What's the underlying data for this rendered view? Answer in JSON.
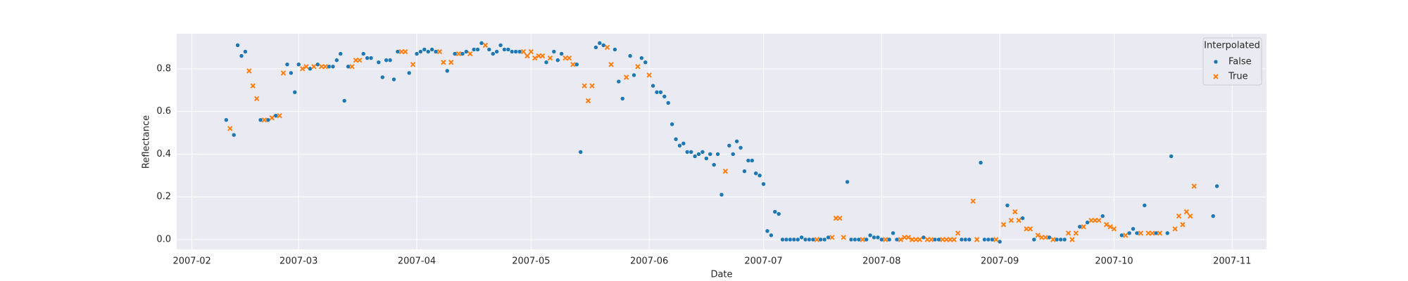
{
  "chart_data": {
    "type": "scatter",
    "x_label": "Date",
    "y_label": "Reflectance",
    "legend_title": "Interpolated",
    "legend": "upper right",
    "grid": true,
    "xlim": [
      "2007-01-28",
      "2007-11-10"
    ],
    "xticks": [
      {
        "value": "2007-02-01",
        "label": "2007-02"
      },
      {
        "value": "2007-03-01",
        "label": "2007-03"
      },
      {
        "value": "2007-04-01",
        "label": "2007-04"
      },
      {
        "value": "2007-05-01",
        "label": "2007-05"
      },
      {
        "value": "2007-06-01",
        "label": "2007-06"
      },
      {
        "value": "2007-07-01",
        "label": "2007-07"
      },
      {
        "value": "2007-08-01",
        "label": "2007-08"
      },
      {
        "value": "2007-09-01",
        "label": "2007-09"
      },
      {
        "value": "2007-10-01",
        "label": "2007-10"
      },
      {
        "value": "2007-11-01",
        "label": "2007-11"
      }
    ],
    "ylim": [
      -0.046,
      0.964
    ],
    "yticks": [
      {
        "value": 0,
        "label": "0.0"
      },
      0.2,
      0.4,
      0.6,
      0.8
    ],
    "series": [
      {
        "name": "False",
        "color": "#1f77b4",
        "marker": "circle",
        "x": [
          "2007-02-10",
          "2007-02-12",
          "2007-02-13",
          "2007-02-14",
          "2007-02-15",
          "2007-02-19",
          "2007-02-21",
          "2007-02-23",
          "2007-02-26",
          "2007-02-27",
          "2007-02-28",
          "2007-03-01",
          "2007-03-04",
          "2007-03-06",
          "2007-03-09",
          "2007-03-10",
          "2007-03-11",
          "2007-03-12",
          "2007-03-13",
          "2007-03-14",
          "2007-03-18",
          "2007-03-19",
          "2007-03-20",
          "2007-03-22",
          "2007-03-23",
          "2007-03-24",
          "2007-03-25",
          "2007-03-26",
          "2007-03-27",
          "2007-03-30",
          "2007-04-01",
          "2007-04-02",
          "2007-04-03",
          "2007-04-04",
          "2007-04-05",
          "2007-04-06",
          "2007-04-09",
          "2007-04-11",
          "2007-04-13",
          "2007-04-14",
          "2007-04-16",
          "2007-04-17",
          "2007-04-18",
          "2007-04-20",
          "2007-04-21",
          "2007-04-22",
          "2007-04-23",
          "2007-04-24",
          "2007-04-25",
          "2007-04-26",
          "2007-04-27",
          "2007-04-28",
          "2007-05-05",
          "2007-05-07",
          "2007-05-08",
          "2007-05-09",
          "2007-05-13",
          "2007-05-14",
          "2007-05-18",
          "2007-05-19",
          "2007-05-20",
          "2007-05-23",
          "2007-05-24",
          "2007-05-25",
          "2007-05-27",
          "2007-05-28",
          "2007-05-30",
          "2007-05-31",
          "2007-06-02",
          "2007-06-03",
          "2007-06-04",
          "2007-06-05",
          "2007-06-06",
          "2007-06-07",
          "2007-06-08",
          "2007-06-09",
          "2007-06-10",
          "2007-06-11",
          "2007-06-12",
          "2007-06-13",
          "2007-06-14",
          "2007-06-15",
          "2007-06-16",
          "2007-06-17",
          "2007-06-18",
          "2007-06-19",
          "2007-06-20",
          "2007-06-22",
          "2007-06-23",
          "2007-06-24",
          "2007-06-25",
          "2007-06-26",
          "2007-06-27",
          "2007-06-28",
          "2007-06-29",
          "2007-06-30",
          "2007-07-01",
          "2007-07-02",
          "2007-07-03",
          "2007-07-04",
          "2007-07-05",
          "2007-07-06",
          "2007-07-07",
          "2007-07-08",
          "2007-07-09",
          "2007-07-10",
          "2007-07-11",
          "2007-07-12",
          "2007-07-13",
          "2007-07-14",
          "2007-07-16",
          "2007-07-17",
          "2007-07-18",
          "2007-07-23",
          "2007-07-24",
          "2007-07-25",
          "2007-07-26",
          "2007-07-28",
          "2007-07-29",
          "2007-07-30",
          "2007-07-31",
          "2007-08-01",
          "2007-08-03",
          "2007-08-04",
          "2007-08-05",
          "2007-08-12",
          "2007-08-15",
          "2007-08-16",
          "2007-08-22",
          "2007-08-23",
          "2007-08-24",
          "2007-08-27",
          "2007-08-28",
          "2007-08-29",
          "2007-08-30",
          "2007-09-01",
          "2007-09-03",
          "2007-09-07",
          "2007-09-10",
          "2007-09-14",
          "2007-09-16",
          "2007-09-17",
          "2007-09-18",
          "2007-09-22",
          "2007-09-24",
          "2007-09-28",
          "2007-10-03",
          "2007-10-05",
          "2007-10-06",
          "2007-10-07",
          "2007-10-09",
          "2007-10-12",
          "2007-10-15",
          "2007-10-16",
          "2007-10-27",
          "2007-10-28"
        ],
        "values": [
          0.56,
          0.49,
          0.91,
          0.86,
          0.88,
          0.56,
          0.56,
          0.58,
          0.82,
          0.78,
          0.69,
          0.82,
          0.8,
          0.82,
          0.81,
          0.81,
          0.84,
          0.87,
          0.65,
          0.81,
          0.87,
          0.85,
          0.85,
          0.83,
          0.76,
          0.84,
          0.84,
          0.75,
          0.88,
          0.78,
          0.87,
          0.88,
          0.89,
          0.88,
          0.89,
          0.88,
          0.79,
          0.87,
          0.87,
          0.88,
          0.89,
          0.89,
          0.92,
          0.89,
          0.87,
          0.88,
          0.91,
          0.89,
          0.89,
          0.88,
          0.88,
          0.88,
          0.83,
          0.88,
          0.84,
          0.87,
          0.82,
          0.41,
          0.9,
          0.92,
          0.91,
          0.89,
          0.74,
          0.66,
          0.86,
          0.77,
          0.85,
          0.83,
          0.72,
          0.69,
          0.69,
          0.67,
          0.64,
          0.54,
          0.47,
          0.44,
          0.45,
          0.41,
          0.41,
          0.39,
          0.4,
          0.41,
          0.38,
          0.4,
          0.35,
          0.4,
          0.21,
          0.44,
          0.4,
          0.46,
          0.43,
          0.32,
          0.37,
          0.37,
          0.31,
          0.3,
          0.26,
          0.04,
          0.02,
          0.13,
          0.12,
          0,
          0,
          0,
          0,
          0,
          0.01,
          0,
          0,
          0,
          0,
          0,
          0.01,
          0.27,
          0,
          0,
          0,
          0,
          0.02,
          0.01,
          0.01,
          0,
          0,
          0.03,
          0,
          0.01,
          0,
          0,
          0,
          0,
          0,
          0.36,
          0,
          0,
          0,
          -0.01,
          0.16,
          0.1,
          0,
          0.01,
          0,
          0,
          0,
          0.06,
          0.08,
          0.11,
          0.02,
          0.03,
          0.05,
          0.03,
          0.16,
          0.03,
          0.03,
          0.39,
          0.11,
          0.25
        ]
      },
      {
        "name": "True",
        "color": "#ff7f0e",
        "marker": "x",
        "x": [
          "2007-02-11",
          "2007-02-16",
          "2007-02-17",
          "2007-02-18",
          "2007-02-20",
          "2007-02-22",
          "2007-02-24",
          "2007-02-25",
          "2007-03-02",
          "2007-03-03",
          "2007-03-05",
          "2007-03-07",
          "2007-03-08",
          "2007-03-15",
          "2007-03-16",
          "2007-03-17",
          "2007-03-28",
          "2007-03-29",
          "2007-03-31",
          "2007-04-07",
          "2007-04-08",
          "2007-04-10",
          "2007-04-12",
          "2007-04-15",
          "2007-04-19",
          "2007-04-29",
          "2007-04-30",
          "2007-05-01",
          "2007-05-02",
          "2007-05-03",
          "2007-05-04",
          "2007-05-06",
          "2007-05-10",
          "2007-05-11",
          "2007-05-12",
          "2007-05-15",
          "2007-05-16",
          "2007-05-17",
          "2007-05-21",
          "2007-05-22",
          "2007-05-26",
          "2007-05-29",
          "2007-06-01",
          "2007-06-21",
          "2007-07-15",
          "2007-07-19",
          "2007-07-20",
          "2007-07-21",
          "2007-07-22",
          "2007-07-27",
          "2007-08-02",
          "2007-08-06",
          "2007-08-07",
          "2007-08-08",
          "2007-08-09",
          "2007-08-10",
          "2007-08-11",
          "2007-08-13",
          "2007-08-14",
          "2007-08-17",
          "2007-08-18",
          "2007-08-19",
          "2007-08-20",
          "2007-08-21",
          "2007-08-25",
          "2007-08-26",
          "2007-08-31",
          "2007-09-02",
          "2007-09-04",
          "2007-09-05",
          "2007-09-06",
          "2007-09-08",
          "2007-09-09",
          "2007-09-11",
          "2007-09-12",
          "2007-09-13",
          "2007-09-15",
          "2007-09-19",
          "2007-09-20",
          "2007-09-21",
          "2007-09-23",
          "2007-09-25",
          "2007-09-26",
          "2007-09-27",
          "2007-09-29",
          "2007-09-30",
          "2007-10-01",
          "2007-10-04",
          "2007-10-08",
          "2007-10-10",
          "2007-10-11",
          "2007-10-13",
          "2007-10-17",
          "2007-10-18",
          "2007-10-19",
          "2007-10-20",
          "2007-10-21",
          "2007-10-22"
        ],
        "values": [
          0.52,
          0.79,
          0.72,
          0.66,
          0.56,
          0.57,
          0.58,
          0.78,
          0.8,
          0.81,
          0.81,
          0.81,
          0.81,
          0.81,
          0.84,
          0.84,
          0.88,
          0.88,
          0.82,
          0.88,
          0.83,
          0.83,
          0.87,
          0.87,
          0.91,
          0.88,
          0.86,
          0.88,
          0.85,
          0.86,
          0.86,
          0.85,
          0.85,
          0.85,
          0.82,
          0.72,
          0.65,
          0.72,
          0.9,
          0.82,
          0.76,
          0.81,
          0.77,
          0.32,
          0,
          0.01,
          0.1,
          0.1,
          0.01,
          0,
          0,
          0,
          0.01,
          0.01,
          0,
          0,
          0,
          0,
          0,
          0,
          0,
          0,
          0,
          0.03,
          0.18,
          0,
          0,
          0.07,
          0.09,
          0.13,
          0.09,
          0.05,
          0.05,
          0.02,
          0.01,
          0.01,
          0,
          0.03,
          0,
          0.03,
          0.06,
          0.09,
          0.09,
          0.09,
          0.07,
          0.06,
          0.05,
          0.02,
          0.03,
          0.03,
          0.03,
          0.03,
          0.05,
          0.11,
          0.07,
          0.13,
          0.11,
          0.25
        ]
      }
    ]
  }
}
